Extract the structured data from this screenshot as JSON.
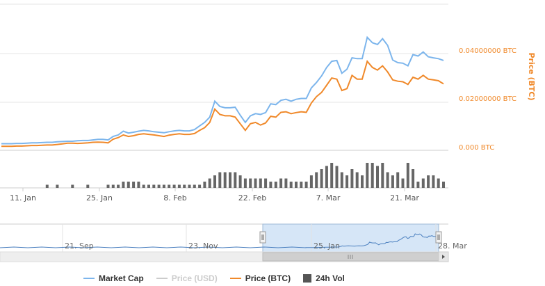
{
  "colors": {
    "market_cap": "#7cb5ec",
    "price_btc": "#f0892a",
    "price_usd_hidden": "#cccccc",
    "volume": "#666666",
    "navigator_fill": "#d6e6f7"
  },
  "legend": {
    "market_cap": "Market Cap",
    "price_usd": "Price (USD)",
    "price_btc": "Price (BTC)",
    "volume": "24h Vol"
  },
  "navigator": {
    "ticks": [
      "21. Sep",
      "23. Nov",
      "25. Jan",
      "28. Mar"
    ]
  },
  "chart_data": {
    "type": "line",
    "ylabel_right": "Price (BTC)",
    "yticks_right": [
      "0.000 BTC",
      "0.02000000 BTC",
      "0.04000000 BTC"
    ],
    "xticks": [
      "11. Jan",
      "25. Jan",
      "8. Feb",
      "22. Feb",
      "7. Mar",
      "21. Mar"
    ],
    "ylim": [
      0,
      0.055
    ],
    "grid": true,
    "legend_position": "bottom",
    "series": [
      {
        "name": "Market Cap",
        "values": [
          0.0025,
          0.0025,
          0.0025,
          0.0026,
          0.0026,
          0.0027,
          0.0028,
          0.0028,
          0.0029,
          0.003,
          0.003,
          0.0032,
          0.0033,
          0.0034,
          0.0034,
          0.0036,
          0.0037,
          0.0037,
          0.0039,
          0.0041,
          0.0041,
          0.0039,
          0.0052,
          0.0058,
          0.0072,
          0.0065,
          0.0068,
          0.0072,
          0.0075,
          0.0073,
          0.007,
          0.0068,
          0.0066,
          0.007,
          0.0073,
          0.0075,
          0.0073,
          0.0073,
          0.0078,
          0.0092,
          0.0105,
          0.0125,
          0.0185,
          0.0165,
          0.016,
          0.016,
          0.0162,
          0.0132,
          0.0105,
          0.013,
          0.0138,
          0.0135,
          0.0142,
          0.0175,
          0.0172,
          0.0188,
          0.0192,
          0.0185,
          0.0192,
          0.0195,
          0.0195,
          0.0235,
          0.0255,
          0.028,
          0.0312,
          0.0335,
          0.0338,
          0.029,
          0.0305,
          0.0348,
          0.0345,
          0.0345,
          0.0425,
          0.0405,
          0.0398,
          0.042,
          0.0395,
          0.034,
          0.033,
          0.0328,
          0.0318,
          0.036,
          0.0355,
          0.037,
          0.0352,
          0.0348,
          0.0345,
          0.0338
        ]
      },
      {
        "name": "Price (BTC)",
        "values": [
          0.0015,
          0.0015,
          0.0015,
          0.0016,
          0.0016,
          0.0017,
          0.0018,
          0.0018,
          0.0019,
          0.002,
          0.002,
          0.0022,
          0.0024,
          0.0027,
          0.0027,
          0.0026,
          0.0027,
          0.0028,
          0.003,
          0.0031,
          0.003,
          0.0028,
          0.0042,
          0.0048,
          0.0058,
          0.0052,
          0.0055,
          0.006,
          0.0062,
          0.006,
          0.0058,
          0.0055,
          0.0052,
          0.0057,
          0.006,
          0.0062,
          0.006,
          0.006,
          0.0063,
          0.0075,
          0.0085,
          0.0105,
          0.0155,
          0.0135,
          0.013,
          0.013,
          0.0125,
          0.01,
          0.0075,
          0.01,
          0.0105,
          0.0095,
          0.0103,
          0.0128,
          0.0125,
          0.0143,
          0.0145,
          0.0138,
          0.0142,
          0.0145,
          0.0143,
          0.0178,
          0.0202,
          0.0218,
          0.0245,
          0.0272,
          0.0268,
          0.0225,
          0.0232,
          0.0282,
          0.0268,
          0.0268,
          0.0335,
          0.0312,
          0.0302,
          0.0318,
          0.0295,
          0.0265,
          0.026,
          0.0258,
          0.0248,
          0.0275,
          0.0268,
          0.0282,
          0.0268,
          0.0265,
          0.0262,
          0.025
        ]
      },
      {
        "name": "24h Vol",
        "values": [
          0,
          0,
          0,
          0,
          0,
          0,
          0,
          0,
          0,
          1,
          0,
          1,
          0,
          0,
          1,
          0,
          0,
          1,
          0,
          0,
          0,
          1,
          1,
          1,
          2,
          2,
          2,
          2,
          1,
          1,
          1,
          1,
          1,
          1,
          1,
          1,
          1,
          1,
          1,
          1,
          2,
          3,
          4,
          5,
          5,
          5,
          5,
          4,
          3,
          3,
          3,
          3,
          3,
          2,
          2,
          3,
          3,
          2,
          2,
          2,
          2,
          4,
          5,
          6,
          7,
          8,
          7,
          5,
          4,
          6,
          5,
          4,
          8,
          8,
          7,
          8,
          5,
          4,
          5,
          3,
          8,
          6,
          2,
          3,
          4,
          4,
          3,
          2
        ]
      }
    ]
  }
}
